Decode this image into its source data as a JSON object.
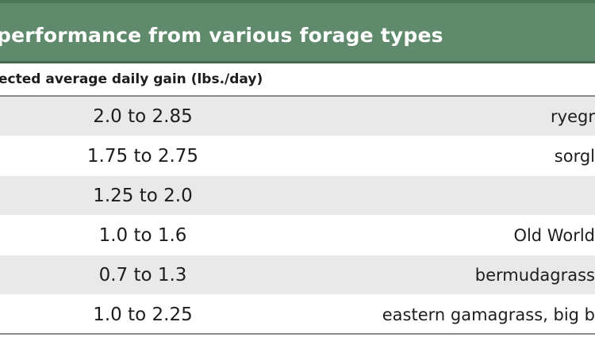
{
  "table": {
    "title": "performance from various forage types",
    "column_header": "ected average daily gain (lbs./day)",
    "rows": [
      {
        "gain": "2.0 to 2.85",
        "forage": "ryegr"
      },
      {
        "gain": "1.75 to 2.75",
        "forage": "sorgl"
      },
      {
        "gain": "1.25 to 2.0",
        "forage": ""
      },
      {
        "gain": "1.0 to 1.6",
        "forage": "Old World"
      },
      {
        "gain": "0.7 to 1.3",
        "forage": "bermudagrass"
      },
      {
        "gain": "1.0 to 2.25",
        "forage": "eastern gamagrass, big b"
      }
    ]
  },
  "colors": {
    "title_bar": "#5f8b6c",
    "row_shade": "#e9e9e9"
  }
}
